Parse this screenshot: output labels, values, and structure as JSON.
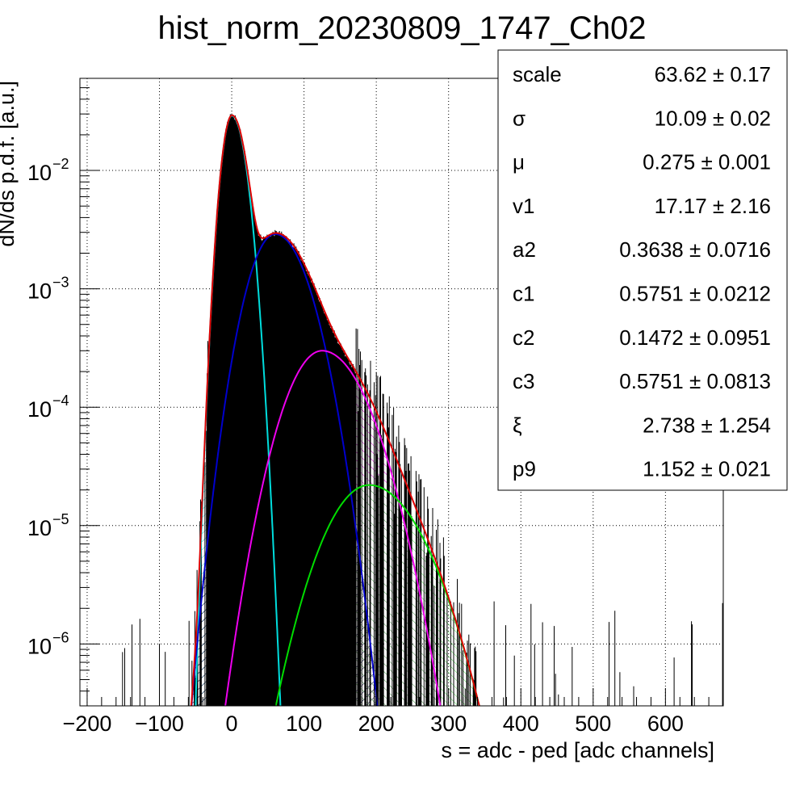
{
  "chart_data": {
    "type": "histogram-fit",
    "title": "hist_norm_20230809_1747_Ch02",
    "xlabel": "s = adc - ped [adc channels]",
    "ylabel": "dN/ds p.d.f. [a.u.]",
    "xlim": [
      -210,
      680
    ],
    "ylim": [
      3e-07,
      0.06
    ],
    "yscale": "log",
    "grid": true,
    "x_ticks": [
      -200,
      -100,
      0,
      100,
      200,
      300,
      400,
      500,
      600
    ],
    "x_tick_labels": [
      "−200",
      "−100",
      "0",
      "100",
      "200",
      "300",
      "400",
      "500",
      "600"
    ],
    "y_ticks": [
      {
        "value": 0.01,
        "base": "10",
        "exp": "−2"
      },
      {
        "value": 0.001,
        "base": "10",
        "exp": "−3"
      },
      {
        "value": 0.0001,
        "base": "10",
        "exp": "−4"
      },
      {
        "value": 1e-05,
        "base": "10",
        "exp": "−5"
      },
      {
        "value": 1e-06,
        "base": "10",
        "exp": "−6"
      }
    ],
    "components": [
      {
        "id": "pedestal",
        "color": "#00dddd",
        "fill_hatch": "#33cccc",
        "peak_x": 0.3,
        "peak_y": 0.029,
        "sigma_left": 10.5,
        "sigma_right": 14.0
      },
      {
        "id": "pe1",
        "color": "#0000cc",
        "fill_hatch": "#000033",
        "peak_x": 60,
        "peak_y": 0.0029,
        "sigma_left": 27,
        "sigma_right": 33
      },
      {
        "id": "pe2",
        "color": "#ee00ee",
        "fill_hatch": "#cc00cc",
        "peak_x": 125,
        "peak_y": 0.0003,
        "sigma_left": 36,
        "sigma_right": 44
      },
      {
        "id": "pe3",
        "color": "#00dd00",
        "fill_hatch": "#55dd55",
        "peak_x": 190,
        "peak_y": 2.2e-05,
        "sigma_left": 44,
        "sigma_right": 52
      }
    ],
    "total_fit_color": "#dd0000",
    "histogram_color": "#000000",
    "stats": [
      {
        "name": "scale",
        "value": "63.62",
        "error": "0.17"
      },
      {
        "name": "σ",
        "value": "10.09",
        "error": "0.02"
      },
      {
        "name": "μ",
        "value": "0.275",
        "error": "0.001"
      },
      {
        "name": "v1",
        "value": "17.17",
        "error": "2.16"
      },
      {
        "name": "a2",
        "value": "0.3638",
        "error": "0.0716"
      },
      {
        "name": "c1",
        "value": "0.5751",
        "error": "0.0212"
      },
      {
        "name": "c2",
        "value": "0.1472",
        "error": "0.0951"
      },
      {
        "name": "c3",
        "value": "0.5751",
        "error": "0.0813"
      },
      {
        "name": "ξ",
        "value": "2.738",
        "error": "1.254"
      },
      {
        "name": "p9",
        "value": "1.152",
        "error": "0.021"
      }
    ]
  }
}
